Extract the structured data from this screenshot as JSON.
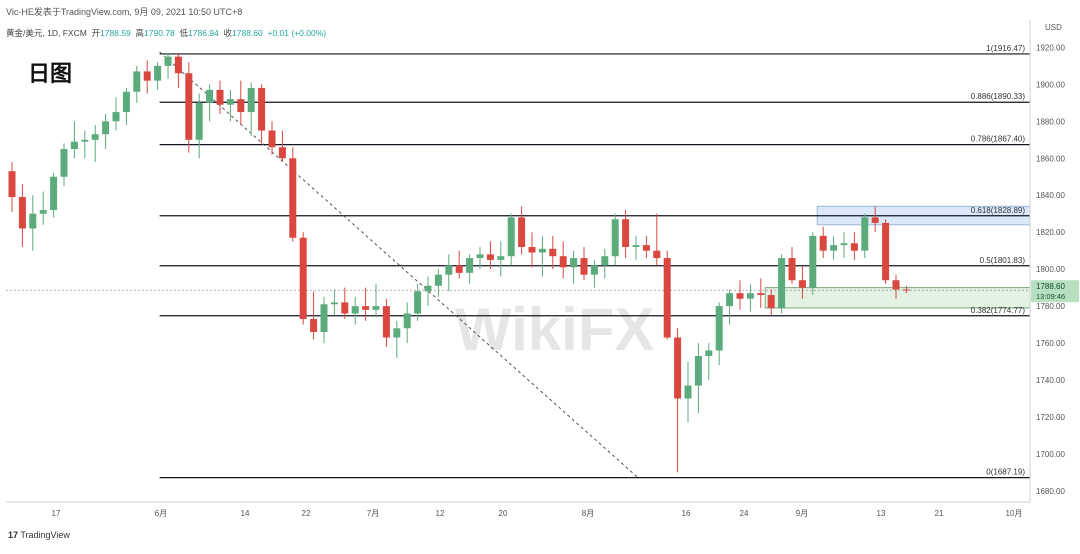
{
  "header": {
    "publisher": "Vic-HE发表于TradingView.com",
    "date": "9月 09, 2021 10:50 UTC+8"
  },
  "symbol_line": {
    "symbol": "黄金/美元",
    "interval": "1D",
    "source": "FXCM",
    "open_label": "开",
    "open": "1788.59",
    "high_label": "高",
    "high": "1790.78",
    "low_label": "低",
    "low": "1786.94",
    "close_label": "收",
    "close": "1788.60",
    "change": "+0.01 (+0.00%)"
  },
  "timeframe_label": "日图",
  "watermark": "WikiFX",
  "branding": "TradingView",
  "colors": {
    "up": "#5cab7d",
    "down": "#d9473f",
    "fib_line": "#131722",
    "resistance_zone": "#cfe0f7",
    "support_zone": "#d9eed9",
    "price_label_bg": "#b7e0c0"
  },
  "chart_data": {
    "type": "candlestick",
    "currency": "USD",
    "ylim": [
      1674,
      1924
    ],
    "y_ticks": [
      1680,
      1700,
      1720,
      1740,
      1760,
      1780,
      1800,
      1820,
      1840,
      1860,
      1880,
      1900,
      1920
    ],
    "x_ticks": [
      "17",
      "6月",
      "14",
      "22",
      "7月",
      "12",
      "20",
      "8月",
      "16",
      "24",
      "9月",
      "13",
      "21",
      "10月"
    ],
    "current_price": "1788.60",
    "countdown": "13:09:46",
    "fib_levels": [
      {
        "ratio": "1",
        "price": 1916.47
      },
      {
        "ratio": "0.886",
        "price": 1890.33
      },
      {
        "ratio": "0.786",
        "price": 1867.4
      },
      {
        "ratio": "0.618",
        "price": 1828.89
      },
      {
        "ratio": "0.5",
        "price": 1801.83
      },
      {
        "ratio": "0.382",
        "price": 1774.77
      },
      {
        "ratio": "0",
        "price": 1687.19
      }
    ],
    "resistance_zone": [
      1824,
      1834
    ],
    "support_zone": [
      1779,
      1790
    ],
    "trendline": {
      "from": [
        "6月",
        1916.47
      ],
      "to": [
        "8月 9日",
        1687.19
      ]
    },
    "candles": [
      {
        "o": 1853,
        "h": 1858,
        "l": 1831,
        "c": 1839
      },
      {
        "o": 1839,
        "h": 1846,
        "l": 1812,
        "c": 1822
      },
      {
        "o": 1822,
        "h": 1840,
        "l": 1810,
        "c": 1830
      },
      {
        "o": 1830,
        "h": 1842,
        "l": 1824,
        "c": 1832
      },
      {
        "o": 1832,
        "h": 1852,
        "l": 1828,
        "c": 1850
      },
      {
        "o": 1850,
        "h": 1868,
        "l": 1845,
        "c": 1865
      },
      {
        "o": 1865,
        "h": 1880,
        "l": 1860,
        "c": 1869
      },
      {
        "o": 1869,
        "h": 1875,
        "l": 1860,
        "c": 1870
      },
      {
        "o": 1870,
        "h": 1878,
        "l": 1858,
        "c": 1873
      },
      {
        "o": 1873,
        "h": 1884,
        "l": 1865,
        "c": 1880
      },
      {
        "o": 1880,
        "h": 1893,
        "l": 1875,
        "c": 1885
      },
      {
        "o": 1885,
        "h": 1898,
        "l": 1878,
        "c": 1896
      },
      {
        "o": 1896,
        "h": 1910,
        "l": 1890,
        "c": 1907
      },
      {
        "o": 1907,
        "h": 1913,
        "l": 1895,
        "c": 1902
      },
      {
        "o": 1902,
        "h": 1912,
        "l": 1897,
        "c": 1910
      },
      {
        "o": 1910,
        "h": 1917,
        "l": 1903,
        "c": 1915
      },
      {
        "o": 1915,
        "h": 1917,
        "l": 1898,
        "c": 1906
      },
      {
        "o": 1906,
        "h": 1912,
        "l": 1863,
        "c": 1870
      },
      {
        "o": 1870,
        "h": 1895,
        "l": 1860,
        "c": 1890
      },
      {
        "o": 1890,
        "h": 1900,
        "l": 1880,
        "c": 1897
      },
      {
        "o": 1897,
        "h": 1902,
        "l": 1884,
        "c": 1889
      },
      {
        "o": 1889,
        "h": 1897,
        "l": 1880,
        "c": 1892
      },
      {
        "o": 1892,
        "h": 1902,
        "l": 1878,
        "c": 1885
      },
      {
        "o": 1885,
        "h": 1901,
        "l": 1872,
        "c": 1898
      },
      {
        "o": 1898,
        "h": 1900,
        "l": 1868,
        "c": 1875
      },
      {
        "o": 1875,
        "h": 1880,
        "l": 1862,
        "c": 1866
      },
      {
        "o": 1866,
        "h": 1875,
        "l": 1858,
        "c": 1860
      },
      {
        "o": 1860,
        "h": 1866,
        "l": 1815,
        "c": 1817
      },
      {
        "o": 1817,
        "h": 1820,
        "l": 1770,
        "c": 1773
      },
      {
        "o": 1773,
        "h": 1788,
        "l": 1762,
        "c": 1766
      },
      {
        "o": 1766,
        "h": 1785,
        "l": 1760,
        "c": 1781
      },
      {
        "o": 1781,
        "h": 1789,
        "l": 1775,
        "c": 1782
      },
      {
        "o": 1782,
        "h": 1790,
        "l": 1773,
        "c": 1776
      },
      {
        "o": 1776,
        "h": 1785,
        "l": 1770,
        "c": 1780
      },
      {
        "o": 1780,
        "h": 1790,
        "l": 1772,
        "c": 1778
      },
      {
        "o": 1778,
        "h": 1792,
        "l": 1774,
        "c": 1780
      },
      {
        "o": 1780,
        "h": 1784,
        "l": 1758,
        "c": 1763
      },
      {
        "o": 1763,
        "h": 1772,
        "l": 1752,
        "c": 1768
      },
      {
        "o": 1768,
        "h": 1782,
        "l": 1760,
        "c": 1776
      },
      {
        "o": 1776,
        "h": 1792,
        "l": 1772,
        "c": 1788
      },
      {
        "o": 1788,
        "h": 1796,
        "l": 1780,
        "c": 1791
      },
      {
        "o": 1791,
        "h": 1800,
        "l": 1785,
        "c": 1797
      },
      {
        "o": 1797,
        "h": 1808,
        "l": 1788,
        "c": 1802
      },
      {
        "o": 1802,
        "h": 1810,
        "l": 1795,
        "c": 1798
      },
      {
        "o": 1798,
        "h": 1808,
        "l": 1792,
        "c": 1806
      },
      {
        "o": 1806,
        "h": 1812,
        "l": 1800,
        "c": 1808
      },
      {
        "o": 1808,
        "h": 1815,
        "l": 1800,
        "c": 1805
      },
      {
        "o": 1805,
        "h": 1815,
        "l": 1796,
        "c": 1807
      },
      {
        "o": 1807,
        "h": 1830,
        "l": 1802,
        "c": 1828
      },
      {
        "o": 1828,
        "h": 1834,
        "l": 1808,
        "c": 1812
      },
      {
        "o": 1812,
        "h": 1820,
        "l": 1801,
        "c": 1809
      },
      {
        "o": 1809,
        "h": 1818,
        "l": 1796,
        "c": 1811
      },
      {
        "o": 1811,
        "h": 1818,
        "l": 1800,
        "c": 1807
      },
      {
        "o": 1807,
        "h": 1815,
        "l": 1795,
        "c": 1801
      },
      {
        "o": 1801,
        "h": 1810,
        "l": 1792,
        "c": 1806
      },
      {
        "o": 1806,
        "h": 1812,
        "l": 1794,
        "c": 1797
      },
      {
        "o": 1797,
        "h": 1805,
        "l": 1790,
        "c": 1802
      },
      {
        "o": 1802,
        "h": 1811,
        "l": 1795,
        "c": 1807
      },
      {
        "o": 1807,
        "h": 1830,
        "l": 1802,
        "c": 1827
      },
      {
        "o": 1827,
        "h": 1832,
        "l": 1806,
        "c": 1812
      },
      {
        "o": 1812,
        "h": 1818,
        "l": 1805,
        "c": 1813
      },
      {
        "o": 1813,
        "h": 1818,
        "l": 1806,
        "c": 1810
      },
      {
        "o": 1810,
        "h": 1830,
        "l": 1802,
        "c": 1806
      },
      {
        "o": 1806,
        "h": 1810,
        "l": 1762,
        "c": 1763
      },
      {
        "o": 1763,
        "h": 1768,
        "l": 1690,
        "c": 1730
      },
      {
        "o": 1730,
        "h": 1750,
        "l": 1717,
        "c": 1737
      },
      {
        "o": 1737,
        "h": 1760,
        "l": 1722,
        "c": 1753
      },
      {
        "o": 1753,
        "h": 1760,
        "l": 1740,
        "c": 1756
      },
      {
        "o": 1756,
        "h": 1782,
        "l": 1748,
        "c": 1780
      },
      {
        "o": 1780,
        "h": 1789,
        "l": 1770,
        "c": 1787
      },
      {
        "o": 1787,
        "h": 1794,
        "l": 1778,
        "c": 1784
      },
      {
        "o": 1784,
        "h": 1792,
        "l": 1777,
        "c": 1787
      },
      {
        "o": 1787,
        "h": 1795,
        "l": 1779,
        "c": 1786
      },
      {
        "o": 1786,
        "h": 1789,
        "l": 1775,
        "c": 1779
      },
      {
        "o": 1779,
        "h": 1808,
        "l": 1776,
        "c": 1806
      },
      {
        "o": 1806,
        "h": 1812,
        "l": 1792,
        "c": 1794
      },
      {
        "o": 1794,
        "h": 1802,
        "l": 1784,
        "c": 1790
      },
      {
        "o": 1790,
        "h": 1820,
        "l": 1786,
        "c": 1818
      },
      {
        "o": 1818,
        "h": 1823,
        "l": 1806,
        "c": 1810
      },
      {
        "o": 1810,
        "h": 1818,
        "l": 1805,
        "c": 1813
      },
      {
        "o": 1813,
        "h": 1820,
        "l": 1806,
        "c": 1814
      },
      {
        "o": 1814,
        "h": 1820,
        "l": 1805,
        "c": 1810
      },
      {
        "o": 1810,
        "h": 1830,
        "l": 1806,
        "c": 1828
      },
      {
        "o": 1828,
        "h": 1834,
        "l": 1820,
        "c": 1825
      },
      {
        "o": 1825,
        "h": 1827,
        "l": 1792,
        "c": 1794
      },
      {
        "o": 1794,
        "h": 1797,
        "l": 1784,
        "c": 1789
      },
      {
        "o": 1789,
        "h": 1791,
        "l": 1787,
        "c": 1788.6
      }
    ]
  }
}
